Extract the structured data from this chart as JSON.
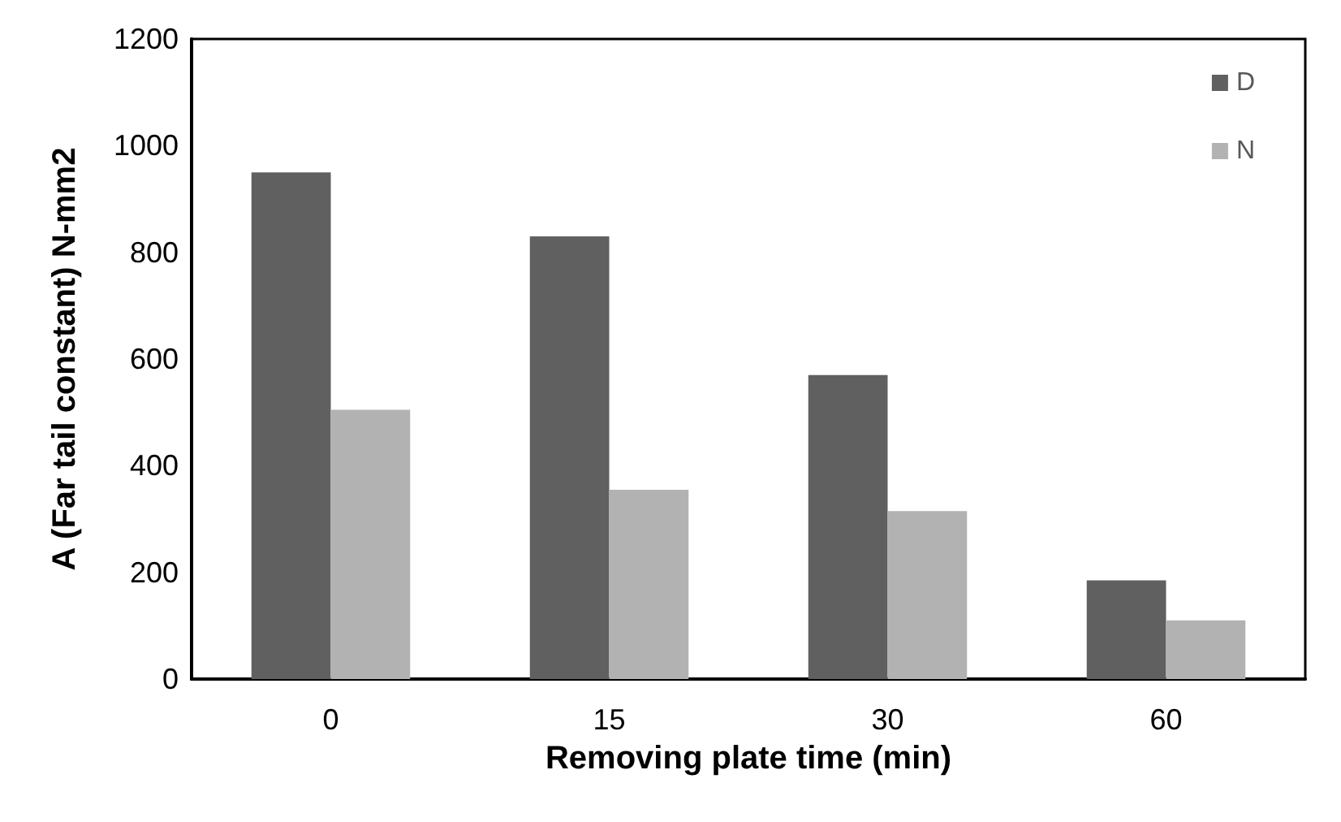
{
  "chart_data": {
    "type": "bar",
    "xlabel": "Removing plate time (min)",
    "ylabel": "A (Far tail constant) N-mm2",
    "categories": [
      "0",
      "15",
      "30",
      "60"
    ],
    "series": [
      {
        "name": "D",
        "color": "#606060",
        "values": [
          950,
          830,
          570,
          185
        ]
      },
      {
        "name": "N",
        "color": "#b2b2b2",
        "values": [
          505,
          355,
          315,
          110
        ]
      }
    ],
    "ylim": [
      0,
      1200
    ],
    "yticks": [
      0,
      200,
      400,
      600,
      800,
      1000,
      1200
    ],
    "grid": false,
    "legend": "top right"
  }
}
